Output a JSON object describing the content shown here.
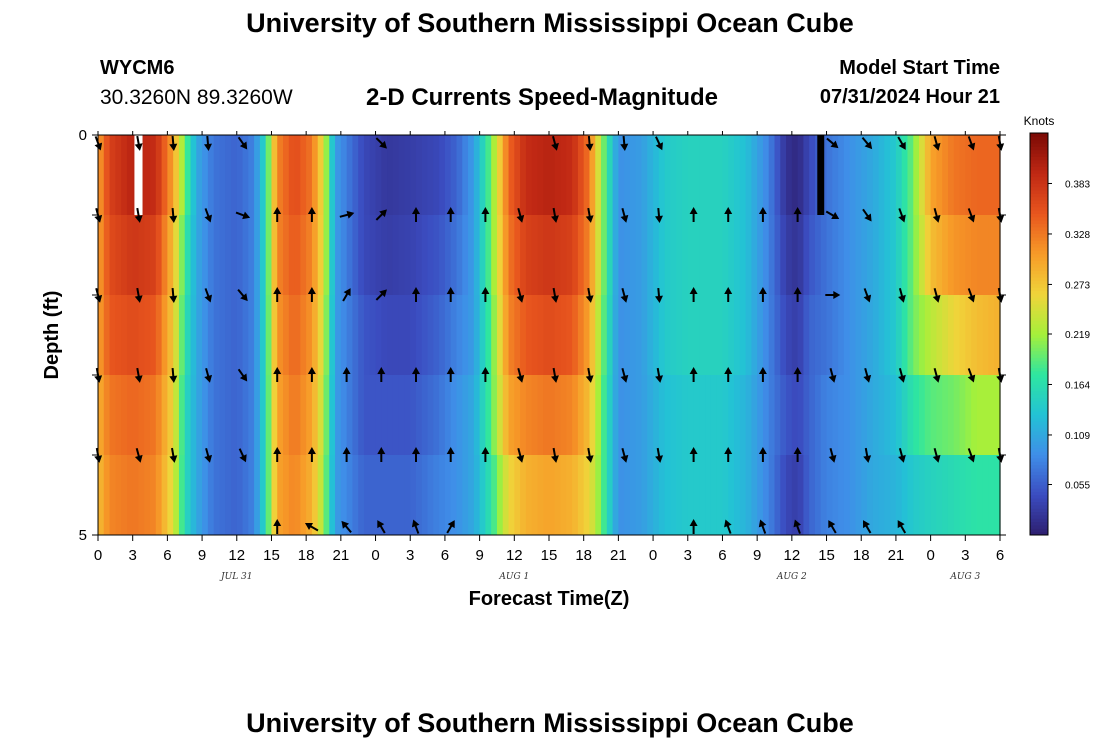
{
  "header": {
    "title": "University of Southern Mississippi Ocean Cube",
    "station_id": "WYCM6",
    "coordinates": "30.3260N  89.3260W",
    "subtitle": "2-D Currents Speed-Magnitude",
    "model_start_label": "Model Start Time",
    "model_start_value": "07/31/2024 Hour 21"
  },
  "footer": {
    "title": "University of Southern Mississippi Ocean Cube"
  },
  "chart_data": {
    "type": "heatmap",
    "title": "2-D Currents Speed-Magnitude",
    "xlabel": "Forecast Time(Z)",
    "ylabel": "Depth (ft)",
    "colorbar_label": "Knots",
    "colorbar_ticks": [
      0.055,
      0.109,
      0.164,
      0.219,
      0.273,
      0.328,
      0.383
    ],
    "colorbar_range": [
      0.0,
      0.438
    ],
    "colors": [
      "#2d1e6e",
      "#3b4cc0",
      "#3f8ee8",
      "#23c2d5",
      "#2ee6a0",
      "#a6f03a",
      "#f0d43a",
      "#f79b28",
      "#e8561e",
      "#c02814",
      "#7a0a05"
    ],
    "ylim": [
      0,
      5
    ],
    "y_tick_labels": [
      "0",
      "5"
    ],
    "x_hour_ticks": [
      "0",
      "3",
      "6",
      "9",
      "12",
      "15",
      "18",
      "21",
      "0",
      "3",
      "6",
      "9",
      "12",
      "15",
      "18",
      "21",
      "0",
      "3",
      "6",
      "9",
      "12",
      "15",
      "18",
      "21",
      "0",
      "3",
      "6"
    ],
    "date_labels": [
      {
        "label": "JUL 31",
        "hour": 12
      },
      {
        "label": "AUG 1",
        "hour": 36
      },
      {
        "label": "AUG 2",
        "hour": 60
      },
      {
        "label": "AUG 3",
        "hour": 75
      }
    ],
    "x_range_hours": [
      0,
      78
    ],
    "depth_levels": [
      0,
      1,
      2,
      3,
      4,
      5
    ],
    "time_profile": {
      "hours": [
        0,
        1,
        3,
        5,
        6.5,
        7.5,
        8.5,
        10,
        12,
        13.5,
        14.5,
        15.5,
        17,
        18.5,
        19.5,
        20.5,
        23,
        25,
        27,
        29.5,
        31,
        32.5,
        34,
        35.5,
        37,
        39,
        41,
        42.5,
        43.5,
        45,
        47,
        49,
        51,
        54,
        56,
        58,
        59.5,
        60.5,
        61.5,
        63,
        65,
        67,
        69,
        70.5,
        72,
        74,
        76,
        78
      ],
      "speed_by_depth": [
        [
          0.3,
          0.37,
          0.4,
          0.39,
          0.3,
          0.2,
          0.11,
          0.07,
          0.06,
          0.08,
          0.16,
          0.32,
          0.36,
          0.33,
          0.25,
          0.1,
          0.04,
          0.025,
          0.03,
          0.04,
          0.06,
          0.1,
          0.2,
          0.34,
          0.39,
          0.4,
          0.39,
          0.33,
          0.22,
          0.09,
          0.1,
          0.14,
          0.15,
          0.15,
          0.13,
          0.08,
          0.02,
          0.01,
          0.04,
          0.07,
          0.09,
          0.11,
          0.14,
          0.2,
          0.3,
          0.33,
          0.34,
          0.34
        ],
        [
          0.3,
          0.36,
          0.38,
          0.37,
          0.28,
          0.18,
          0.11,
          0.07,
          0.06,
          0.08,
          0.16,
          0.32,
          0.35,
          0.32,
          0.25,
          0.1,
          0.04,
          0.03,
          0.035,
          0.05,
          0.07,
          0.1,
          0.2,
          0.33,
          0.37,
          0.38,
          0.37,
          0.32,
          0.22,
          0.09,
          0.1,
          0.14,
          0.15,
          0.15,
          0.13,
          0.08,
          0.03,
          0.02,
          0.05,
          0.07,
          0.09,
          0.11,
          0.14,
          0.2,
          0.28,
          0.31,
          0.32,
          0.32
        ],
        [
          0.3,
          0.35,
          0.36,
          0.35,
          0.27,
          0.17,
          0.11,
          0.07,
          0.06,
          0.08,
          0.16,
          0.31,
          0.34,
          0.31,
          0.24,
          0.1,
          0.05,
          0.04,
          0.04,
          0.06,
          0.08,
          0.1,
          0.19,
          0.32,
          0.35,
          0.36,
          0.35,
          0.3,
          0.21,
          0.09,
          0.1,
          0.14,
          0.15,
          0.15,
          0.13,
          0.08,
          0.04,
          0.03,
          0.06,
          0.07,
          0.09,
          0.11,
          0.14,
          0.2,
          0.23,
          0.26,
          0.28,
          0.29
        ],
        [
          0.29,
          0.33,
          0.34,
          0.33,
          0.26,
          0.16,
          0.11,
          0.07,
          0.06,
          0.08,
          0.16,
          0.3,
          0.33,
          0.3,
          0.23,
          0.1,
          0.05,
          0.05,
          0.05,
          0.07,
          0.09,
          0.11,
          0.19,
          0.3,
          0.32,
          0.33,
          0.32,
          0.28,
          0.2,
          0.09,
          0.1,
          0.13,
          0.14,
          0.14,
          0.12,
          0.08,
          0.05,
          0.04,
          0.06,
          0.08,
          0.09,
          0.11,
          0.13,
          0.17,
          0.19,
          0.2,
          0.22,
          0.22
        ],
        [
          0.28,
          0.32,
          0.33,
          0.32,
          0.25,
          0.16,
          0.11,
          0.07,
          0.06,
          0.08,
          0.16,
          0.3,
          0.32,
          0.29,
          0.22,
          0.1,
          0.06,
          0.06,
          0.06,
          0.08,
          0.09,
          0.11,
          0.17,
          0.26,
          0.29,
          0.3,
          0.29,
          0.26,
          0.2,
          0.09,
          0.1,
          0.13,
          0.14,
          0.14,
          0.12,
          0.08,
          0.04,
          0.03,
          0.06,
          0.08,
          0.09,
          0.11,
          0.12,
          0.14,
          0.15,
          0.16,
          0.17,
          0.17
        ]
      ]
    },
    "arrow_hours": [
      0,
      3.5,
      6.5,
      9.5,
      12.5,
      15.5,
      18.5,
      21.5,
      24.5,
      27.5,
      30.5,
      33.5,
      36.5,
      39.5,
      42.5,
      45.5,
      48.5,
      51.5,
      54.5,
      57.5,
      60.5,
      63.5,
      66.5,
      69.5,
      72.5,
      75.5,
      78
    ],
    "arrow_rows": [
      {
        "depth": 0.1,
        "angles": [
          160,
          170,
          175,
          175,
          145,
          null,
          null,
          null,
          135,
          null,
          null,
          null,
          null,
          165,
          175,
          175,
          155,
          null,
          null,
          null,
          null,
          130,
          140,
          150,
          165,
          160,
          170
        ]
      },
      {
        "depth": 1.0,
        "angles": [
          165,
          170,
          175,
          160,
          110,
          0,
          0,
          75,
          45,
          0,
          0,
          0,
          165,
          170,
          170,
          165,
          175,
          0,
          0,
          0,
          0,
          120,
          145,
          160,
          165,
          160,
          170
        ]
      },
      {
        "depth": 2.0,
        "angles": [
          165,
          170,
          175,
          160,
          140,
          0,
          0,
          30,
          45,
          0,
          0,
          0,
          165,
          170,
          170,
          165,
          175,
          0,
          0,
          0,
          0,
          90,
          160,
          165,
          165,
          160,
          170
        ]
      },
      {
        "depth": 3.0,
        "angles": [
          170,
          170,
          175,
          165,
          145,
          0,
          0,
          0,
          0,
          0,
          0,
          0,
          165,
          170,
          170,
          165,
          170,
          0,
          0,
          0,
          0,
          165,
          165,
          165,
          165,
          160,
          170
        ]
      },
      {
        "depth": 4.0,
        "angles": [
          170,
          165,
          170,
          165,
          155,
          0,
          0,
          0,
          0,
          0,
          0,
          0,
          165,
          170,
          170,
          165,
          170,
          0,
          0,
          0,
          0,
          165,
          170,
          165,
          165,
          160,
          170
        ]
      },
      {
        "depth": 4.9,
        "angles": [
          null,
          null,
          null,
          null,
          null,
          0,
          300,
          320,
          330,
          340,
          30,
          null,
          null,
          null,
          null,
          null,
          null,
          0,
          340,
          340,
          340,
          330,
          330,
          330,
          null,
          null,
          null
        ]
      }
    ],
    "arrow_color": "#000000",
    "annotations": [
      {
        "type": "missing-data-block",
        "hour": 3.5,
        "depth_from": 0,
        "depth_to": 1,
        "color": "#ffffff"
      },
      {
        "type": "low-value-streak",
        "hour": 62.5,
        "depth_from": 0,
        "depth_to": 1,
        "color": "#000000"
      }
    ]
  }
}
